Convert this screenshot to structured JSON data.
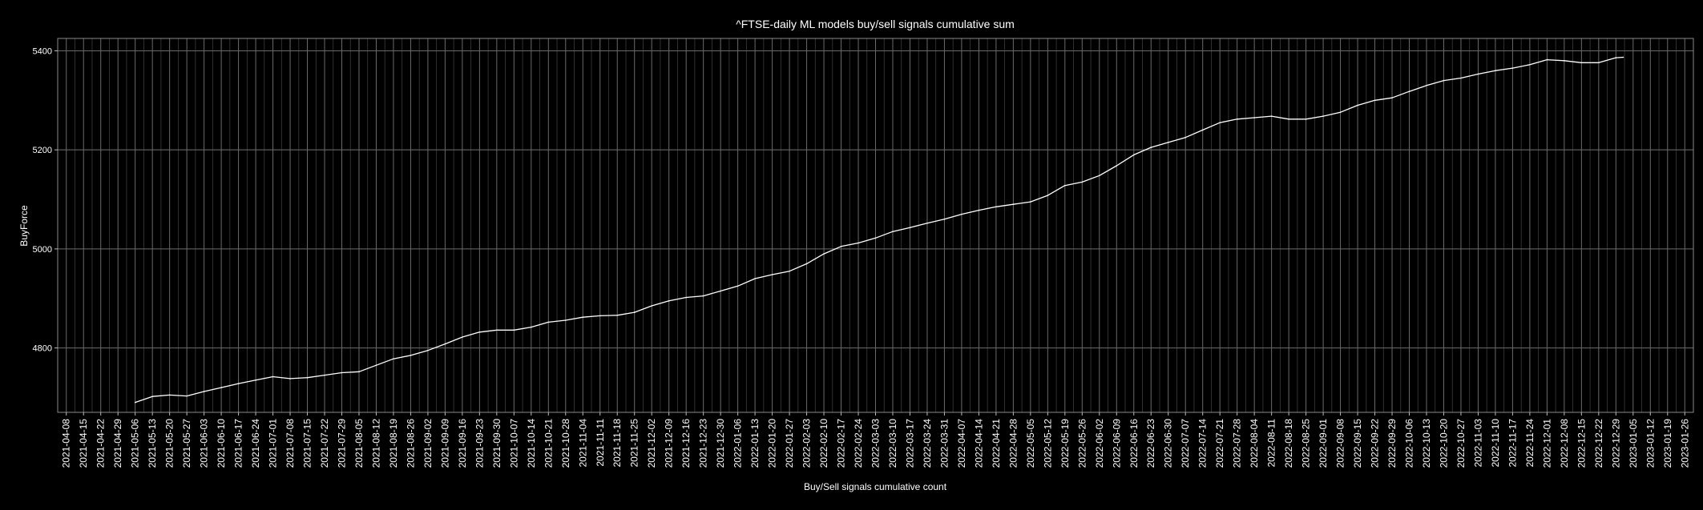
{
  "chart_data": {
    "type": "line",
    "title": "^FTSE-daily ML models buy/sell signals cumulative sum",
    "xlabel": "Buy/Sell signals cumulative count",
    "ylabel": "BuyForce",
    "x_ticks": [
      "2021-04-08",
      "2021-04-15",
      "2021-04-22",
      "2021-04-29",
      "2021-05-06",
      "2021-05-13",
      "2021-05-20",
      "2021-05-27",
      "2021-06-03",
      "2021-06-10",
      "2021-06-17",
      "2021-06-24",
      "2021-07-01",
      "2021-07-08",
      "2021-07-15",
      "2021-07-22",
      "2021-07-29",
      "2021-08-05",
      "2021-08-12",
      "2021-08-19",
      "2021-08-26",
      "2021-09-02",
      "2021-09-09",
      "2021-09-16",
      "2021-09-23",
      "2021-09-30",
      "2021-10-07",
      "2021-10-14",
      "2021-10-21",
      "2021-10-28",
      "2021-11-04",
      "2021-11-11",
      "2021-11-18",
      "2021-11-25",
      "2021-12-02",
      "2021-12-09",
      "2021-12-16",
      "2021-12-23",
      "2021-12-30",
      "2022-01-06",
      "2022-01-13",
      "2022-01-20",
      "2022-01-27",
      "2022-02-03",
      "2022-02-10",
      "2022-02-17",
      "2022-02-24",
      "2022-03-03",
      "2022-03-10",
      "2022-03-17",
      "2022-03-24",
      "2022-03-31",
      "2022-04-07",
      "2022-04-14",
      "2022-04-21",
      "2022-04-28",
      "2022-05-05",
      "2022-05-12",
      "2022-05-19",
      "2022-05-26",
      "2022-06-02",
      "2022-06-09",
      "2022-06-16",
      "2022-06-23",
      "2022-06-30",
      "2022-07-07",
      "2022-07-14",
      "2022-07-21",
      "2022-07-28",
      "2022-08-04",
      "2022-08-11",
      "2022-08-18",
      "2022-08-25",
      "2022-09-01",
      "2022-09-08",
      "2022-09-15",
      "2022-09-22",
      "2022-09-29",
      "2022-10-06",
      "2022-10-13",
      "2022-10-20",
      "2022-10-27",
      "2022-11-03",
      "2022-11-10",
      "2022-11-17",
      "2022-11-24",
      "2022-12-01",
      "2022-12-08",
      "2022-12-15",
      "2022-12-22",
      "2022-12-29",
      "2023-01-05",
      "2023-01-12",
      "2023-01-19",
      "2023-01-26"
    ],
    "y_ticks": [
      4800,
      5000,
      5200,
      5400
    ],
    "ylim": [
      4670,
      5425
    ],
    "grid": true,
    "series": [
      {
        "color": "#ffffff",
        "x": [
          "2021-05-06",
          "2021-05-13",
          "2021-05-20",
          "2021-05-27",
          "2021-06-03",
          "2021-06-10",
          "2021-06-17",
          "2021-06-24",
          "2021-07-01",
          "2021-07-08",
          "2021-07-15",
          "2021-07-22",
          "2021-07-29",
          "2021-08-05",
          "2021-08-12",
          "2021-08-19",
          "2021-08-26",
          "2021-09-02",
          "2021-09-09",
          "2021-09-16",
          "2021-09-23",
          "2021-09-30",
          "2021-10-07",
          "2021-10-14",
          "2021-10-21",
          "2021-10-28",
          "2021-11-04",
          "2021-11-11",
          "2021-11-18",
          "2021-11-25",
          "2021-12-02",
          "2021-12-09",
          "2021-12-16",
          "2021-12-23",
          "2021-12-30",
          "2022-01-06",
          "2022-01-13",
          "2022-01-20",
          "2022-01-27",
          "2022-02-03",
          "2022-02-10",
          "2022-02-17",
          "2022-02-24",
          "2022-03-03",
          "2022-03-10",
          "2022-03-17",
          "2022-03-24",
          "2022-03-31",
          "2022-04-07",
          "2022-04-14",
          "2022-04-21",
          "2022-04-28",
          "2022-05-05",
          "2022-05-12",
          "2022-05-19",
          "2022-05-26",
          "2022-06-02",
          "2022-06-09",
          "2022-06-16",
          "2022-06-23",
          "2022-06-30",
          "2022-07-07",
          "2022-07-14",
          "2022-07-21",
          "2022-07-28",
          "2022-08-04",
          "2022-08-11",
          "2022-08-18",
          "2022-08-25",
          "2022-09-01",
          "2022-09-08",
          "2022-09-15",
          "2022-09-22",
          "2022-09-29",
          "2022-10-06",
          "2022-10-13",
          "2022-10-20",
          "2022-10-27",
          "2022-11-03",
          "2022-11-10",
          "2022-11-17",
          "2022-11-24",
          "2022-12-01",
          "2022-12-08",
          "2022-12-15",
          "2022-12-22",
          "2022-12-29",
          "2023-01-01"
        ],
        "values": [
          4690,
          4702,
          4705,
          4703,
          4712,
          4720,
          4728,
          4735,
          4742,
          4738,
          4740,
          4745,
          4750,
          4752,
          4765,
          4778,
          4785,
          4795,
          4808,
          4822,
          4832,
          4836,
          4836,
          4842,
          4852,
          4856,
          4862,
          4865,
          4866,
          4872,
          4885,
          4895,
          4902,
          4905,
          4915,
          4925,
          4940,
          4948,
          4955,
          4970,
          4990,
          5005,
          5012,
          5022,
          5035,
          5043,
          5052,
          5060,
          5070,
          5078,
          5085,
          5090,
          5095,
          5108,
          5128,
          5135,
          5148,
          5168,
          5190,
          5205,
          5215,
          5225,
          5240,
          5255,
          5262,
          5265,
          5268,
          5262,
          5262,
          5268,
          5276,
          5290,
          5300,
          5305,
          5318,
          5330,
          5340,
          5345,
          5353,
          5360,
          5365,
          5372,
          5382,
          5380,
          5376,
          5376,
          5386,
          5387
        ]
      }
    ]
  }
}
